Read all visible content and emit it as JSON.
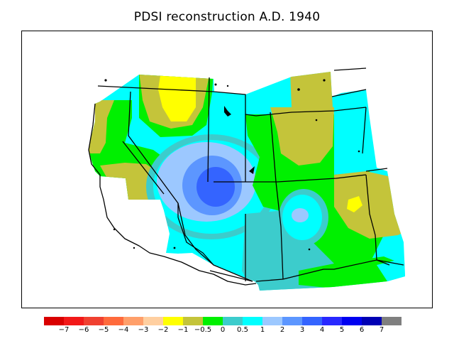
{
  "title": "PDSI reconstruction A.D. 1940",
  "legend": {
    "colors": [
      "#d90000",
      "#f21818",
      "#f04030",
      "#ff6a3c",
      "#ff9f6a",
      "#ffcfa0",
      "#ffff00",
      "#c4c43a",
      "#00f000",
      "#3ccccc",
      "#00ffff",
      "#9cc8ff",
      "#5c96ff",
      "#3464ff",
      "#2828ff",
      "#0000f0",
      "#0000b4",
      "#7f7f7f"
    ],
    "ticks": [
      "−7",
      "−6",
      "−5",
      "−4",
      "−3",
      "−2",
      "−1",
      "−0.5",
      "0",
      "0.5",
      "1",
      "2",
      "3",
      "4",
      "5",
      "6",
      "7"
    ]
  },
  "map_colors": {
    "background": "#00ffff",
    "near_normal": "#3ccccc",
    "slightly_dry": "#c4c43a",
    "dry": "#ffff00",
    "slightly_wet": "#9cc8ff",
    "wet": "#5c96ff",
    "very_wet": "#3464ff",
    "green": "#00f000"
  }
}
